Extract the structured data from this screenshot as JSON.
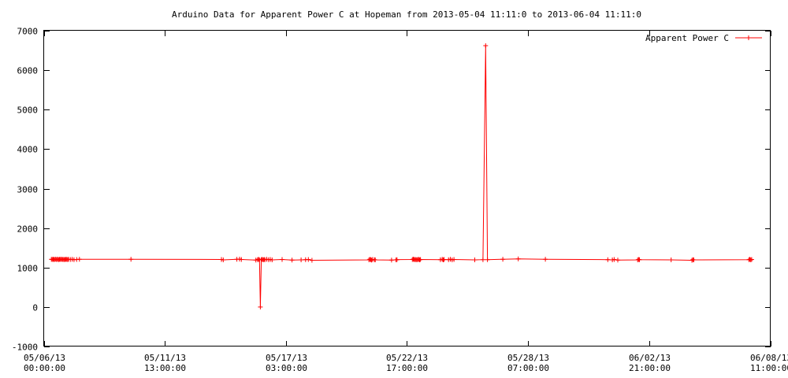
{
  "chart_data": {
    "type": "line",
    "title": "Arduino Data for Apparent Power C at Hopeman from 2013-05-04 11:11:0 to 2013-06-04 11:11:0",
    "xlabel": "",
    "ylabel": "",
    "ylim": [
      -1000,
      7000
    ],
    "xlim": [
      "2013-05-06 00:00:00",
      "2013-06-08 11:00:00"
    ],
    "grid": false,
    "legend_position": "top-right",
    "y_ticks": [
      "-1000",
      "0",
      "1000",
      "2000",
      "3000",
      "4000",
      "5000",
      "6000",
      "7000"
    ],
    "x_ticks": [
      {
        "line1": "05/06/13",
        "line2": "00:00:00",
        "value": "2013-05-06 00:00:00"
      },
      {
        "line1": "05/11/13",
        "line2": "13:00:00",
        "value": "2013-05-11 13:00:00"
      },
      {
        "line1": "05/17/13",
        "line2": "03:00:00",
        "value": "2013-05-17 03:00:00"
      },
      {
        "line1": "05/22/13",
        "line2": "17:00:00",
        "value": "2013-05-22 17:00:00"
      },
      {
        "line1": "05/28/13",
        "line2": "07:00:00",
        "value": "2013-05-28 07:00:00"
      },
      {
        "line1": "06/02/13",
        "line2": "21:00:00",
        "value": "2013-06-02 21:00:00"
      },
      {
        "line1": "06/08/13",
        "line2": "11:00:00",
        "value": "2013-06-08 11:00:00"
      }
    ],
    "series": [
      {
        "name": "Apparent Power C",
        "color": "#ff0000",
        "points": [
          [
            "2013-05-06 08:00",
            1210
          ],
          [
            "2013-05-06 09:00",
            1205
          ],
          [
            "2013-05-06 10:00",
            1215
          ],
          [
            "2013-05-06 11:00",
            1200
          ],
          [
            "2013-05-06 12:00",
            1212
          ],
          [
            "2013-05-06 13:00",
            1208
          ],
          [
            "2013-05-06 14:00",
            1203
          ],
          [
            "2013-05-06 15:00",
            1214
          ],
          [
            "2013-05-06 16:00",
            1200
          ],
          [
            "2013-05-06 17:00",
            1210
          ],
          [
            "2013-05-06 18:00",
            1206
          ],
          [
            "2013-05-06 19:00",
            1212
          ],
          [
            "2013-05-06 20:00",
            1204
          ],
          [
            "2013-05-06 21:00",
            1209
          ],
          [
            "2013-05-06 22:00",
            1201
          ],
          [
            "2013-05-06 23:00",
            1211
          ],
          [
            "2013-05-07 00:00",
            1205
          ],
          [
            "2013-05-07 01:00",
            1208
          ],
          [
            "2013-05-07 02:00",
            1202
          ],
          [
            "2013-05-07 03:00",
            1210
          ],
          [
            "2013-05-07 05:00",
            1205
          ],
          [
            "2013-05-07 07:00",
            1210
          ],
          [
            "2013-05-07 09:00",
            1200
          ],
          [
            "2013-05-07 12:00",
            1205
          ],
          [
            "2013-05-07 15:00",
            1210
          ],
          [
            "2013-05-10 00:00",
            1210
          ],
          [
            "2013-05-14 04:00",
            1205
          ],
          [
            "2013-05-14 06:00",
            1195
          ],
          [
            "2013-05-14 21:00",
            1210
          ],
          [
            "2013-05-15 00:00",
            1215
          ],
          [
            "2013-05-15 02:00",
            1205
          ],
          [
            "2013-05-15 18:00",
            1190
          ],
          [
            "2013-05-15 20:00",
            1200
          ],
          [
            "2013-05-15 21:00",
            1210
          ],
          [
            "2013-05-15 22:00",
            1195
          ],
          [
            "2013-05-15 23:00",
            0
          ],
          [
            "2013-05-16 00:00",
            1200
          ],
          [
            "2013-05-16 01:00",
            1210
          ],
          [
            "2013-05-16 02:00",
            1195
          ],
          [
            "2013-05-16 03:00",
            1205
          ],
          [
            "2013-05-16 04:00",
            1200
          ],
          [
            "2013-05-16 06:00",
            1210
          ],
          [
            "2013-05-16 08:00",
            1200
          ],
          [
            "2013-05-16 10:00",
            1205
          ],
          [
            "2013-05-16 12:00",
            1195
          ],
          [
            "2013-05-16 23:00",
            1205
          ],
          [
            "2013-05-17 10:00",
            1190
          ],
          [
            "2013-05-17 20:00",
            1195
          ],
          [
            "2013-05-18 01:00",
            1200
          ],
          [
            "2013-05-18 04:00",
            1205
          ],
          [
            "2013-05-18 08:00",
            1185
          ],
          [
            "2013-05-20 23:00",
            1195
          ],
          [
            "2013-05-21 00:00",
            1210
          ],
          [
            "2013-05-21 01:00",
            1200
          ],
          [
            "2013-05-21 02:00",
            1190
          ],
          [
            "2013-05-21 03:00",
            1205
          ],
          [
            "2013-05-21 05:00",
            1200
          ],
          [
            "2013-05-21 06:00",
            1195
          ],
          [
            "2013-05-22 00:00",
            1190
          ],
          [
            "2013-05-22 05:00",
            1195
          ],
          [
            "2013-05-22 06:00",
            1200
          ],
          [
            "2013-05-22 23:00",
            1205
          ],
          [
            "2013-05-23 00:00",
            1215
          ],
          [
            "2013-05-23 01:00",
            1200
          ],
          [
            "2013-05-23 02:00",
            1210
          ],
          [
            "2013-05-23 03:00",
            1195
          ],
          [
            "2013-05-23 04:00",
            1205
          ],
          [
            "2013-05-23 05:00",
            1200
          ],
          [
            "2013-05-23 06:00",
            1210
          ],
          [
            "2013-05-23 07:00",
            1195
          ],
          [
            "2013-05-23 08:00",
            1205
          ],
          [
            "2013-05-24 06:00",
            1200
          ],
          [
            "2013-05-24 08:00",
            1210
          ],
          [
            "2013-05-24 09:00",
            1195
          ],
          [
            "2013-05-24 10:00",
            1205
          ],
          [
            "2013-05-24 15:00",
            1200
          ],
          [
            "2013-05-24 17:00",
            1210
          ],
          [
            "2013-05-24 19:00",
            1195
          ],
          [
            "2013-05-24 21:00",
            1205
          ],
          [
            "2013-05-25 20:00",
            1195
          ],
          [
            "2013-05-26 05:00",
            1200
          ],
          [
            "2013-05-26 08:00",
            6620
          ],
          [
            "2013-05-26 10:00",
            1200
          ],
          [
            "2013-05-27 03:00",
            1210
          ],
          [
            "2013-05-27 20:00",
            1220
          ],
          [
            "2013-05-29 02:00",
            1210
          ],
          [
            "2013-05-31 23:00",
            1200
          ],
          [
            "2013-06-01 04:00",
            1195
          ],
          [
            "2013-06-01 06:00",
            1205
          ],
          [
            "2013-06-01 10:00",
            1190
          ],
          [
            "2013-06-02 08:00",
            1195
          ],
          [
            "2013-06-02 09:00",
            1205
          ],
          [
            "2013-06-02 10:00",
            1200
          ],
          [
            "2013-06-03 21:00",
            1195
          ],
          [
            "2013-06-04 20:00",
            1185
          ],
          [
            "2013-06-04 21:00",
            1200
          ],
          [
            "2013-06-04 22:00",
            1195
          ],
          [
            "2013-06-07 11:00",
            1200
          ],
          [
            "2013-06-07 12:00",
            1210
          ],
          [
            "2013-06-07 13:00",
            1195
          ],
          [
            "2013-06-07 14:00",
            1205
          ]
        ]
      }
    ]
  }
}
